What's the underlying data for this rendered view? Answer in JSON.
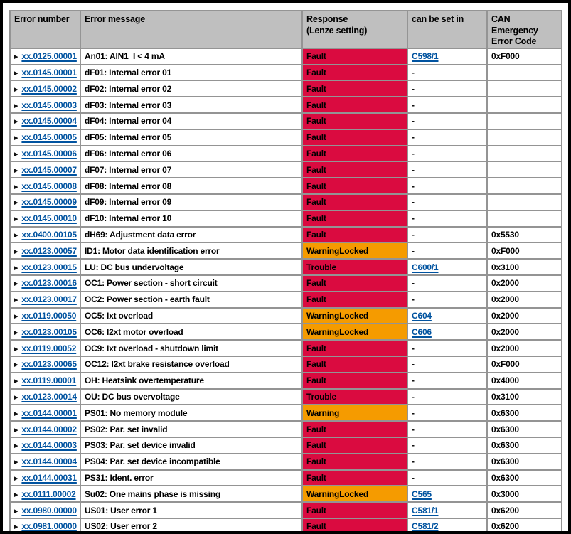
{
  "colors": {
    "red": "#da0b40",
    "orange": "#f59b00",
    "header_gray": "#bfbfbf",
    "link_blue": "#0053a0",
    "border_gray": "#949494"
  },
  "table": {
    "headers": [
      "Error number",
      "Error message",
      "Response\n(Lenze setting)",
      "can be set in",
      "CAN Emergency\nError Code"
    ],
    "rows": [
      {
        "number": "xx.0125.00001",
        "message": "An01: AIN1_I <  4 mA",
        "response": "Fault",
        "response_color": "red",
        "set_in": "C598/1",
        "can_code": "0xF000"
      },
      {
        "number": "xx.0145.00001",
        "message": "dF01: Internal error 01",
        "response": "Fault",
        "response_color": "red",
        "set_in": "-",
        "can_code": ""
      },
      {
        "number": "xx.0145.00002",
        "message": "dF02: Internal error 02",
        "response": "Fault",
        "response_color": "red",
        "set_in": "-",
        "can_code": ""
      },
      {
        "number": "xx.0145.00003",
        "message": "dF03: Internal error 03",
        "response": "Fault",
        "response_color": "red",
        "set_in": "-",
        "can_code": ""
      },
      {
        "number": "xx.0145.00004",
        "message": "dF04: Internal error 04",
        "response": "Fault",
        "response_color": "red",
        "set_in": "-",
        "can_code": ""
      },
      {
        "number": "xx.0145.00005",
        "message": "dF05: Internal error 05",
        "response": "Fault",
        "response_color": "red",
        "set_in": "-",
        "can_code": ""
      },
      {
        "number": "xx.0145.00006",
        "message": "dF06: Internal error 06",
        "response": "Fault",
        "response_color": "red",
        "set_in": "-",
        "can_code": ""
      },
      {
        "number": "xx.0145.00007",
        "message": "dF07: Internal error 07",
        "response": "Fault",
        "response_color": "red",
        "set_in": "-",
        "can_code": ""
      },
      {
        "number": "xx.0145.00008",
        "message": "dF08: Internal error 08",
        "response": "Fault",
        "response_color": "red",
        "set_in": "-",
        "can_code": ""
      },
      {
        "number": "xx.0145.00009",
        "message": "dF09: Internal error 09",
        "response": "Fault",
        "response_color": "red",
        "set_in": "-",
        "can_code": ""
      },
      {
        "number": "xx.0145.00010",
        "message": "dF10: Internal error 10",
        "response": "Fault",
        "response_color": "red",
        "set_in": "-",
        "can_code": ""
      },
      {
        "number": "xx.0400.00105",
        "message": "dH69: Adjustment data error",
        "response": "Fault",
        "response_color": "red",
        "set_in": "-",
        "can_code": "0x5530"
      },
      {
        "number": "xx.0123.00057",
        "message": "ID1: Motor data identification error",
        "response": "WarningLocked",
        "response_color": "orange",
        "set_in": "-",
        "can_code": "0xF000"
      },
      {
        "number": "xx.0123.00015",
        "message": "LU: DC bus undervoltage",
        "response": "Trouble",
        "response_color": "red",
        "set_in": "C600/1",
        "can_code": "0x3100"
      },
      {
        "number": "xx.0123.00016",
        "message": "OC1: Power section - short circuit",
        "response": "Fault",
        "response_color": "red",
        "set_in": "-",
        "can_code": "0x2000"
      },
      {
        "number": "xx.0123.00017",
        "message": "OC2: Power section - earth fault",
        "response": "Fault",
        "response_color": "red",
        "set_in": "-",
        "can_code": "0x2000"
      },
      {
        "number": "xx.0119.00050",
        "message": "OC5: Ixt overload",
        "response": "WarningLocked",
        "response_color": "orange",
        "set_in": "C604",
        "can_code": "0x2000"
      },
      {
        "number": "xx.0123.00105",
        "message": "OC6: I2xt motor overload",
        "response": "WarningLocked",
        "response_color": "orange",
        "set_in": "C606",
        "can_code": "0x2000"
      },
      {
        "number": "xx.0119.00052",
        "message": "OC9: Ixt overload - shutdown limit",
        "response": "Fault",
        "response_color": "red",
        "set_in": "-",
        "can_code": "0x2000"
      },
      {
        "number": "xx.0123.00065",
        "message": "OC12: I2xt brake resistance overload",
        "response": "Fault",
        "response_color": "red",
        "set_in": "-",
        "can_code": "0xF000"
      },
      {
        "number": "xx.0119.00001",
        "message": "OH: Heatsink overtemperature",
        "response": "Fault",
        "response_color": "red",
        "set_in": "-",
        "can_code": "0x4000"
      },
      {
        "number": "xx.0123.00014",
        "message": "OU: DC bus overvoltage",
        "response": "Trouble",
        "response_color": "red",
        "set_in": "-",
        "can_code": "0x3100"
      },
      {
        "number": "xx.0144.00001",
        "message": "PS01: No memory module",
        "response": "Warning",
        "response_color": "orange",
        "set_in": "-",
        "can_code": "0x6300"
      },
      {
        "number": "xx.0144.00002",
        "message": "PS02: Par. set invalid",
        "response": "Fault",
        "response_color": "red",
        "set_in": "-",
        "can_code": "0x6300"
      },
      {
        "number": "xx.0144.00003",
        "message": "PS03: Par. set device invalid",
        "response": "Fault",
        "response_color": "red",
        "set_in": "-",
        "can_code": "0x6300"
      },
      {
        "number": "xx.0144.00004",
        "message": "PS04: Par. set device incompatible",
        "response": "Fault",
        "response_color": "red",
        "set_in": "-",
        "can_code": "0x6300"
      },
      {
        "number": "xx.0144.00031",
        "message": "PS31: Ident. error",
        "response": "Fault",
        "response_color": "red",
        "set_in": "-",
        "can_code": "0x6300"
      },
      {
        "number": "xx.0111.00002",
        "message": "Su02: One mains phase is missing",
        "response": "WarningLocked",
        "response_color": "orange",
        "set_in": "C565",
        "can_code": "0x3000"
      },
      {
        "number": "xx.0980.00000",
        "message": "US01: User error 1",
        "response": "Fault",
        "response_color": "red",
        "set_in": "C581/1",
        "can_code": "0x6200"
      },
      {
        "number": "xx.0981.00000",
        "message": "US02: User error 2",
        "response": "Fault",
        "response_color": "red",
        "set_in": "C581/2",
        "can_code": "0x6200"
      }
    ]
  }
}
